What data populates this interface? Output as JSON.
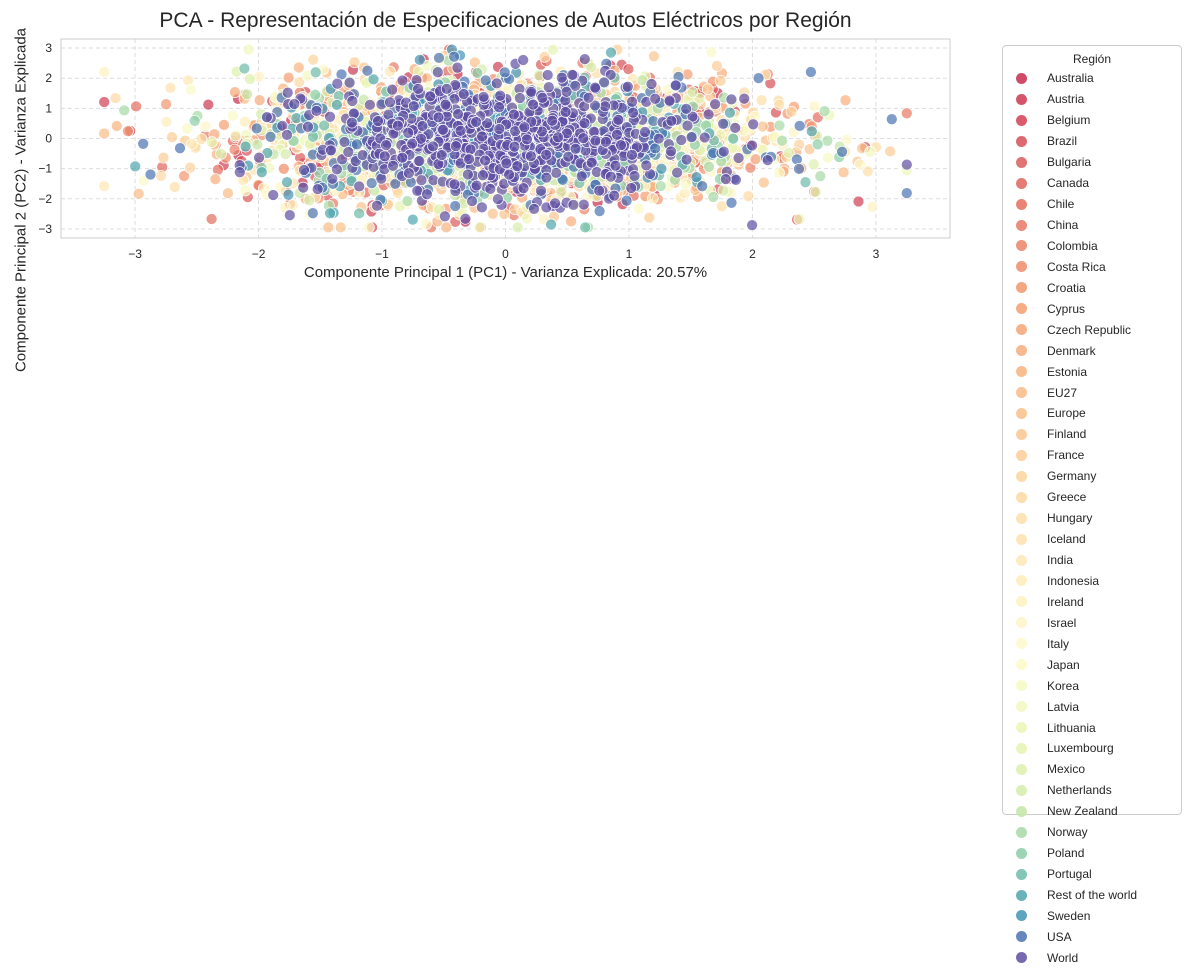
{
  "chart_data": {
    "type": "scatter",
    "title": "PCA - Representación de Especificaciones de Autos Eléctricos por Región",
    "xlabel": "Componente Principal 1 (PC1) - Varianza Explicada: 20.57%",
    "ylabel": "Componente Principal 2 (PC2) - Varianza Explicada",
    "xlim": [
      -3.6,
      3.6
    ],
    "ylim": [
      -3.3,
      3.3
    ],
    "xticks": [
      "−3",
      "−2",
      "−1",
      "0",
      "1",
      "2",
      "3"
    ],
    "yticks": [
      "3",
      "2",
      "1",
      "0",
      "−1",
      "−2",
      "−3"
    ],
    "grid": true,
    "legend_title": "Región",
    "legend_placement": "outside-right",
    "point_opacity": 0.7,
    "point_edge_color": "#ffffff",
    "series": [
      {
        "name": "Australia",
        "color": "#c72b4c"
      },
      {
        "name": "Austria",
        "color": "#cc3750"
      },
      {
        "name": "Belgium",
        "color": "#d13f52"
      },
      {
        "name": "Brazil",
        "color": "#d64f56"
      },
      {
        "name": "Bulgaria",
        "color": "#da5a5a"
      },
      {
        "name": "Canada",
        "color": "#df655d"
      },
      {
        "name": "Chile",
        "color": "#e36e5e"
      },
      {
        "name": "China",
        "color": "#e77963"
      },
      {
        "name": "Colombia",
        "color": "#eb8267"
      },
      {
        "name": "Costa Rica",
        "color": "#ef8c69"
      },
      {
        "name": "Croatia",
        "color": "#f2966c"
      },
      {
        "name": "Cyprus",
        "color": "#f49e70"
      },
      {
        "name": "Czech Republic",
        "color": "#f5a676"
      },
      {
        "name": "Denmark",
        "color": "#f6ad7b"
      },
      {
        "name": "Estonia",
        "color": "#f7b37f"
      },
      {
        "name": "EU27",
        "color": "#f8ba85"
      },
      {
        "name": "Europe",
        "color": "#f9c08a"
      },
      {
        "name": "Finland",
        "color": "#fac690"
      },
      {
        "name": "France",
        "color": "#fbcc95"
      },
      {
        "name": "Germany",
        "color": "#fcd39c"
      },
      {
        "name": "Greece",
        "color": "#fcd8a2"
      },
      {
        "name": "Hungary",
        "color": "#fddea8"
      },
      {
        "name": "Iceland",
        "color": "#fde3ae"
      },
      {
        "name": "India",
        "color": "#fee8b4"
      },
      {
        "name": "Indonesia",
        "color": "#feedba"
      },
      {
        "name": "Ireland",
        "color": "#fef1c0"
      },
      {
        "name": "Israel",
        "color": "#fef5c6"
      },
      {
        "name": "Italy",
        "color": "#fdf8c9"
      },
      {
        "name": "Japan",
        "color": "#fbfac8"
      },
      {
        "name": "Korea",
        "color": "#f6fac2"
      },
      {
        "name": "Latvia",
        "color": "#f1f8bd"
      },
      {
        "name": "Lithuania",
        "color": "#ecf6b6"
      },
      {
        "name": "Luxembourg",
        "color": "#e5f3b1"
      },
      {
        "name": "Mexico",
        "color": "#ddf0ab"
      },
      {
        "name": "Netherlands",
        "color": "#d5ecab"
      },
      {
        "name": "New Zealand",
        "color": "#c4e6a8"
      },
      {
        "name": "Norway",
        "color": "#a7d9a6"
      },
      {
        "name": "Poland",
        "color": "#8ccda6"
      },
      {
        "name": "Portugal",
        "color": "#6dbba9"
      },
      {
        "name": "Rest of the world",
        "color": "#4fa5ae"
      },
      {
        "name": "Sweden",
        "color": "#4293b5"
      },
      {
        "name": "USA",
        "color": "#4a72b0"
      },
      {
        "name": "World",
        "color": "#5e4fa2"
      }
    ]
  }
}
